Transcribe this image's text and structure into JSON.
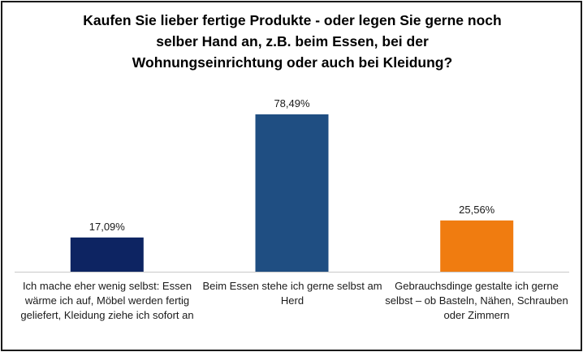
{
  "chart_data": {
    "type": "bar",
    "title": "Kaufen Sie lieber fertige Produkte - oder legen Sie gerne noch\nselber Hand an, z.B. beim Essen, bei der\nWohnungseinrichtung oder auch bei Kleidung?",
    "categories": [
      "Ich mache eher wenig selbst: Essen wärme ich auf, Möbel werden fertig geliefert, Kleidung ziehe ich sofort an",
      "Beim Essen stehe ich gerne selbst am Herd",
      "Gebrauchsdinge gestalte ich gerne selbst – ob Basteln, Nähen, Schrauben oder Zimmern"
    ],
    "values": [
      17.09,
      78.49,
      25.56
    ],
    "data_labels": [
      "17,09%",
      "78,49%",
      "25,56%"
    ],
    "colors": [
      "#0d2462",
      "#1f4e82",
      "#f07c10"
    ],
    "xlabel": "",
    "ylabel": "",
    "ylim": [
      0,
      100
    ],
    "grid": false,
    "legend": "none"
  }
}
